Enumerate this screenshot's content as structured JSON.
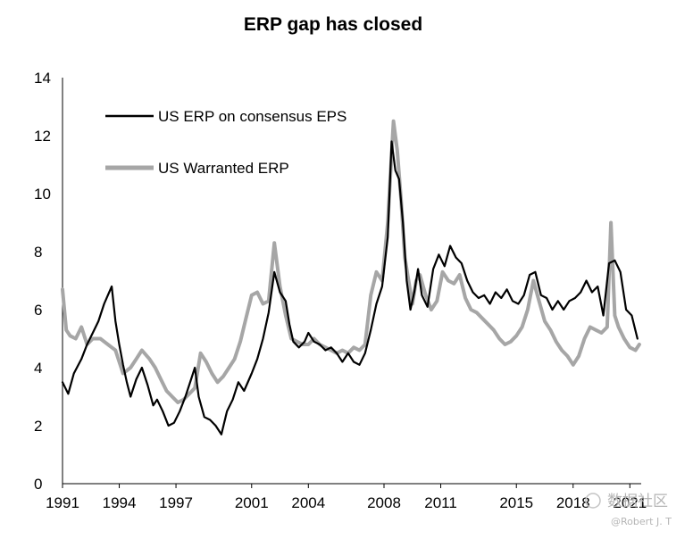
{
  "chart_data": {
    "type": "line",
    "title": "ERP gap has closed",
    "xlabel": "",
    "ylabel": "",
    "ylim": [
      0,
      14
    ],
    "yticks": [
      0,
      2,
      4,
      6,
      8,
      10,
      12,
      14
    ],
    "xlim": [
      1991.0,
      2021.6
    ],
    "xticks": [
      1991,
      1994,
      1997,
      2001,
      2004,
      2008,
      2011,
      2015,
      2018,
      2021
    ],
    "legend_position": "top-left",
    "series": [
      {
        "name": "US ERP on consensus EPS",
        "color": "#000000",
        "x": [
          1991.0,
          1991.3,
          1991.6,
          1992.0,
          1992.3,
          1992.6,
          1992.9,
          1993.2,
          1993.4,
          1993.6,
          1993.8,
          1994.0,
          1994.2,
          1994.4,
          1994.6,
          1994.9,
          1995.2,
          1995.5,
          1995.8,
          1996.0,
          1996.3,
          1996.6,
          1996.9,
          1997.2,
          1997.5,
          1997.8,
          1998.0,
          1998.2,
          1998.5,
          1998.8,
          1999.1,
          1999.4,
          1999.7,
          2000.0,
          2000.3,
          2000.6,
          2001.0,
          2001.3,
          2001.6,
          2001.9,
          2002.2,
          2002.5,
          2002.8,
          2003.0,
          2003.2,
          2003.5,
          2003.8,
          2004.0,
          2004.3,
          2004.6,
          2004.9,
          2005.2,
          2005.5,
          2005.8,
          2006.1,
          2006.4,
          2006.7,
          2007.0,
          2007.3,
          2007.6,
          2007.9,
          2008.2,
          2008.4,
          2008.6,
          2008.8,
          2009.0,
          2009.2,
          2009.4,
          2009.6,
          2009.8,
          2010.0,
          2010.3,
          2010.6,
          2010.9,
          2011.2,
          2011.5,
          2011.8,
          2012.1,
          2012.4,
          2012.7,
          2013.0,
          2013.3,
          2013.6,
          2013.9,
          2014.2,
          2014.5,
          2014.8,
          2015.1,
          2015.4,
          2015.7,
          2016.0,
          2016.3,
          2016.6,
          2016.9,
          2017.2,
          2017.5,
          2017.8,
          2018.1,
          2018.4,
          2018.7,
          2019.0,
          2019.3,
          2019.6,
          2019.9,
          2020.2,
          2020.5,
          2020.8,
          2021.1,
          2021.4
        ],
        "values": [
          3.5,
          3.1,
          3.8,
          4.3,
          4.8,
          5.2,
          5.6,
          6.2,
          6.5,
          6.8,
          5.6,
          4.8,
          4.1,
          3.5,
          3.0,
          3.6,
          4.0,
          3.4,
          2.7,
          2.9,
          2.5,
          2.0,
          2.1,
          2.5,
          3.0,
          3.6,
          4.0,
          3.0,
          2.3,
          2.2,
          2.0,
          1.7,
          2.5,
          2.9,
          3.5,
          3.2,
          3.8,
          4.3,
          5.0,
          5.9,
          7.3,
          6.6,
          6.3,
          5.5,
          4.9,
          4.7,
          4.9,
          5.2,
          4.9,
          4.8,
          4.6,
          4.7,
          4.5,
          4.2,
          4.5,
          4.2,
          4.1,
          4.5,
          5.3,
          6.2,
          6.8,
          8.5,
          11.8,
          10.8,
          10.5,
          9.0,
          7.0,
          6.0,
          6.6,
          7.4,
          6.5,
          6.1,
          7.4,
          7.9,
          7.5,
          8.2,
          7.8,
          7.6,
          7.0,
          6.6,
          6.4,
          6.5,
          6.2,
          6.6,
          6.4,
          6.7,
          6.3,
          6.2,
          6.5,
          7.2,
          7.3,
          6.5,
          6.4,
          6.0,
          6.3,
          6.0,
          6.3,
          6.4,
          6.6,
          7.0,
          6.6,
          6.8,
          5.8,
          7.6,
          7.7,
          7.3,
          6.0,
          5.8,
          5.0
        ]
      },
      {
        "name": "US Warranted ERP",
        "color": "#a6a6a6",
        "x": [
          1991.0,
          1991.2,
          1991.4,
          1991.7,
          1992.0,
          1992.3,
          1992.6,
          1993.0,
          1993.4,
          1993.8,
          1994.2,
          1994.6,
          1994.9,
          1995.2,
          1995.6,
          1995.9,
          1996.2,
          1996.5,
          1996.8,
          1997.1,
          1997.4,
          1997.7,
          1998.0,
          1998.3,
          1998.6,
          1998.9,
          1999.2,
          1999.5,
          1999.8,
          2000.1,
          2000.4,
          2000.7,
          2001.0,
          2001.3,
          2001.6,
          2001.9,
          2002.2,
          2002.5,
          2002.8,
          2003.1,
          2003.4,
          2003.7,
          2004.0,
          2004.3,
          2004.6,
          2004.9,
          2005.2,
          2005.5,
          2005.8,
          2006.1,
          2006.4,
          2006.7,
          2007.0,
          2007.3,
          2007.6,
          2007.9,
          2008.2,
          2008.5,
          2008.7,
          2008.9,
          2009.1,
          2009.3,
          2009.5,
          2009.7,
          2009.9,
          2010.2,
          2010.5,
          2010.8,
          2011.1,
          2011.4,
          2011.7,
          2012.0,
          2012.3,
          2012.6,
          2012.9,
          2013.2,
          2013.5,
          2013.8,
          2014.1,
          2014.4,
          2014.7,
          2015.0,
          2015.3,
          2015.6,
          2015.9,
          2016.2,
          2016.5,
          2016.8,
          2017.1,
          2017.4,
          2017.7,
          2018.0,
          2018.3,
          2018.6,
          2018.9,
          2019.2,
          2019.5,
          2019.8,
          2020.0,
          2020.2,
          2020.4,
          2020.7,
          2021.0,
          2021.3,
          2021.5
        ],
        "values": [
          6.7,
          5.3,
          5.1,
          5.0,
          5.4,
          4.8,
          5.0,
          5.0,
          4.8,
          4.6,
          3.8,
          4.0,
          4.3,
          4.6,
          4.3,
          4.0,
          3.6,
          3.2,
          3.0,
          2.8,
          2.9,
          3.1,
          3.3,
          4.5,
          4.2,
          3.8,
          3.5,
          3.7,
          4.0,
          4.3,
          4.9,
          5.7,
          6.5,
          6.6,
          6.2,
          6.3,
          8.3,
          6.8,
          5.8,
          5.0,
          4.9,
          4.8,
          4.8,
          5.0,
          4.8,
          4.7,
          4.6,
          4.5,
          4.6,
          4.5,
          4.7,
          4.6,
          4.8,
          6.5,
          7.3,
          7.0,
          9.0,
          12.5,
          11.5,
          9.8,
          7.8,
          7.0,
          6.2,
          7.0,
          7.2,
          6.5,
          6.0,
          6.3,
          7.3,
          7.0,
          6.9,
          7.2,
          6.4,
          6.0,
          5.9,
          5.7,
          5.5,
          5.3,
          5.0,
          4.8,
          4.9,
          5.1,
          5.4,
          6.0,
          7.0,
          6.3,
          5.6,
          5.3,
          4.9,
          4.6,
          4.4,
          4.1,
          4.4,
          5.0,
          5.4,
          5.3,
          5.2,
          5.4,
          9.0,
          5.8,
          5.4,
          5.0,
          4.7,
          4.6,
          4.8
        ]
      }
    ]
  },
  "watermark": {
    "main_text": "数据社区",
    "author_text": "@Robert J. T"
  }
}
